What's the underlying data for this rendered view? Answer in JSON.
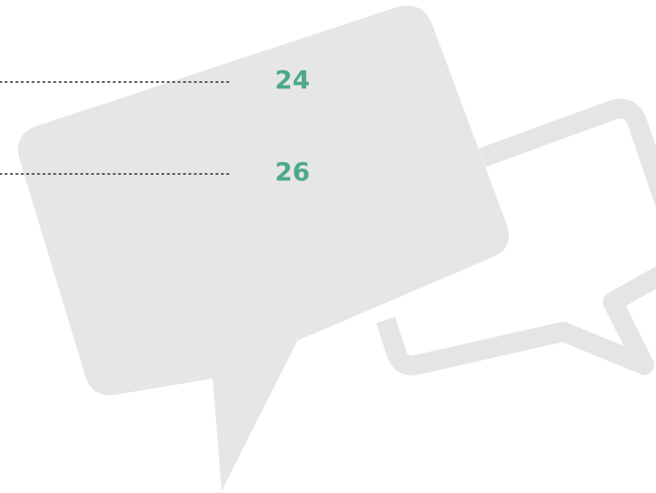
{
  "toc": {
    "entries": [
      {
        "page": "24"
      },
      {
        "page": "26"
      }
    ]
  }
}
